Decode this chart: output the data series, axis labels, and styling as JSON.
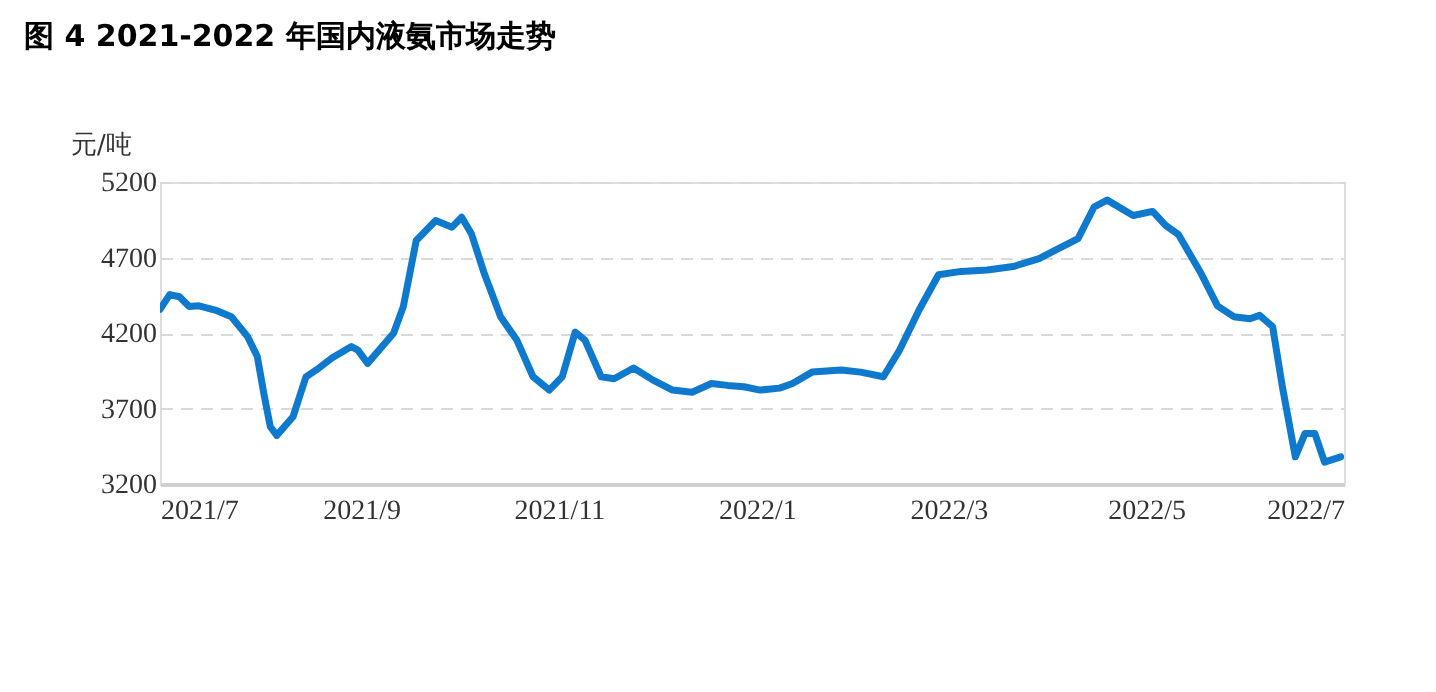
{
  "chart_data": {
    "type": "line",
    "title": "图 4 2021-2022 年国内液氨市场走势",
    "ylabel": "元/吨",
    "x": [
      "2021-07-01",
      "2021-07-04",
      "2021-07-07",
      "2021-07-10",
      "2021-07-13",
      "2021-07-18",
      "2021-07-23",
      "2021-07-28",
      "2021-07-31",
      "2021-08-02",
      "2021-08-04",
      "2021-08-06",
      "2021-08-11",
      "2021-08-15",
      "2021-08-19",
      "2021-08-23",
      "2021-08-29",
      "2021-08-31",
      "2021-09-03",
      "2021-09-11",
      "2021-09-14",
      "2021-09-18",
      "2021-09-24",
      "2021-09-29",
      "2021-10-02",
      "2021-10-05",
      "2021-10-09",
      "2021-10-14",
      "2021-10-19",
      "2021-10-24",
      "2021-10-29",
      "2021-11-02",
      "2021-11-06",
      "2021-11-09",
      "2021-11-14",
      "2021-11-18",
      "2021-11-24",
      "2021-11-30",
      "2021-12-06",
      "2021-12-12",
      "2021-12-18",
      "2021-12-23",
      "2021-12-28",
      "2022-01-02",
      "2022-01-08",
      "2022-01-12",
      "2022-01-18",
      "2022-01-27",
      "2022-02-02",
      "2022-02-09",
      "2022-02-14",
      "2022-02-20",
      "2022-02-26",
      "2022-03-05",
      "2022-03-13",
      "2022-03-21",
      "2022-03-29",
      "2022-04-02",
      "2022-04-10",
      "2022-04-15",
      "2022-04-19",
      "2022-04-27",
      "2022-05-03",
      "2022-05-07",
      "2022-05-11",
      "2022-05-18",
      "2022-05-23",
      "2022-05-28",
      "2022-06-02",
      "2022-06-05",
      "2022-06-09",
      "2022-06-12",
      "2022-06-16",
      "2022-06-19",
      "2022-06-22",
      "2022-06-25",
      "2022-06-30"
    ],
    "series": [
      {
        "color": "#0f7acd",
        "values": [
          4357,
          4454,
          4440,
          4375,
          4380,
          4352,
          4308,
          4176,
          4044,
          3800,
          3580,
          3522,
          3645,
          3910,
          3968,
          4034,
          4110,
          4087,
          3999,
          4198,
          4375,
          4813,
          4945,
          4901,
          4967,
          4857,
          4592,
          4308,
          4153,
          3910,
          3822,
          3910,
          4206,
          4153,
          3910,
          3897,
          3968,
          3888,
          3822,
          3808,
          3866,
          3853,
          3844,
          3822,
          3835,
          3866,
          3941,
          3955,
          3941,
          3910,
          4087,
          4352,
          4586,
          4608,
          4617,
          4640,
          4693,
          4737,
          4825,
          5036,
          5080,
          4978,
          5005,
          4913,
          4851,
          4592,
          4380,
          4308,
          4294,
          4317,
          4242,
          3844,
          3380,
          3535,
          3535,
          3345,
          3380
        ]
      }
    ],
    "xlim": [
      "2021-07-01",
      "2022-07-01"
    ],
    "xticks": [
      {
        "value": "2021-07-01",
        "label": "2021/7"
      },
      {
        "value": "2021-09-01",
        "label": "2021/9"
      },
      {
        "value": "2021-11-01",
        "label": "2021/11"
      },
      {
        "value": "2022-01-01",
        "label": "2022/1"
      },
      {
        "value": "2022-03-01",
        "label": "2022/3"
      },
      {
        "value": "2022-05-01",
        "label": "2022/5"
      },
      {
        "value": "2022-07-01",
        "label": "2022/7"
      }
    ],
    "ylim": [
      3200,
      5200
    ],
    "yticks": [
      3200,
      3700,
      4200,
      4700,
      5200
    ],
    "grid": "y",
    "line_style": "solid",
    "marker": "none",
    "legend": false
  }
}
